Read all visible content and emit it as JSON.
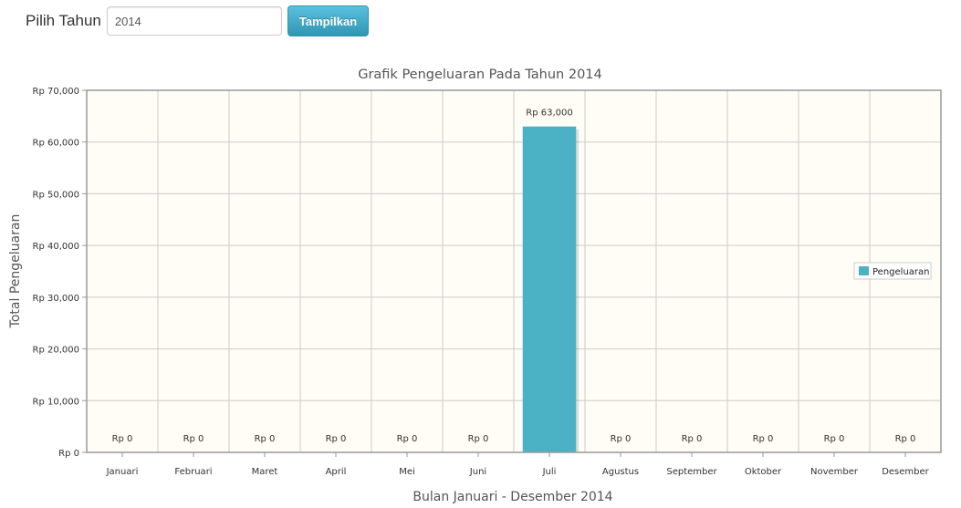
{
  "form": {
    "year_label": "Pilih Tahun",
    "year_value": "2014",
    "submit_label": "Tampilkan"
  },
  "colors": {
    "bar": "#4bb2c5",
    "plot_bg": "#fffdf6",
    "grid": "#cccccc",
    "axis_text": "#333333",
    "title_text": "#555555"
  },
  "chart_data": {
    "type": "bar",
    "title": "Grafik Pengeluaran Pada Tahun 2014",
    "xlabel": "Bulan Januari - Desember 2014",
    "ylabel": "Total Pengeluaran",
    "ylim": [
      0,
      70000
    ],
    "yticks": [
      0,
      10000,
      20000,
      30000,
      40000,
      50000,
      60000,
      70000
    ],
    "ytick_labels": [
      "Rp 0",
      "Rp 10,000",
      "Rp 20,000",
      "Rp 30,000",
      "Rp 40,000",
      "Rp 50,000",
      "Rp 60,000",
      "Rp 70,000"
    ],
    "grid": true,
    "legend_position": "right",
    "categories": [
      "Januari",
      "Februari",
      "Maret",
      "April",
      "Mei",
      "Juni",
      "Juli",
      "Agustus",
      "September",
      "Oktober",
      "November",
      "Desember"
    ],
    "series": [
      {
        "name": "Pengeluaran",
        "values": [
          0,
          0,
          0,
          0,
          0,
          0,
          63000,
          0,
          0,
          0,
          0,
          0
        ],
        "labels": [
          "Rp 0",
          "Rp 0",
          "Rp 0",
          "Rp 0",
          "Rp 0",
          "Rp 0",
          "Rp 63,000",
          "Rp 0",
          "Rp 0",
          "Rp 0",
          "Rp 0",
          "Rp 0"
        ]
      }
    ]
  }
}
